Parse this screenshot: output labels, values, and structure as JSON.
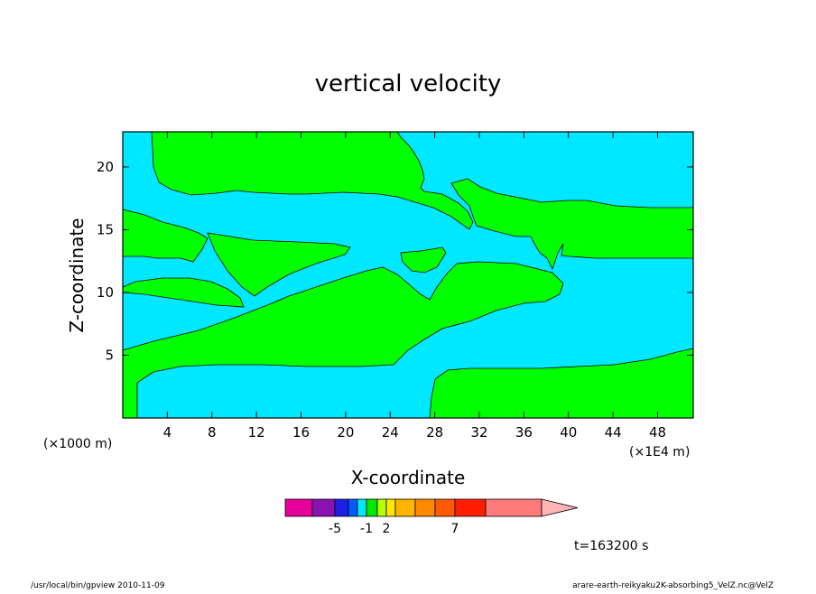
{
  "chart_data": {
    "type": "heatmap",
    "title": "vertical velocity",
    "xlabel": "X-coordinate",
    "ylabel": "Z-coordinate",
    "x_units": "(×1E4 m)",
    "y_units": "(×1000 m)",
    "x_ticks": [
      4,
      8,
      12,
      16,
      20,
      24,
      28,
      32,
      36,
      40,
      44,
      48
    ],
    "y_ticks": [
      5,
      10,
      15,
      20
    ],
    "xlim": [
      0,
      51.2
    ],
    "ylim": [
      0,
      22.8
    ],
    "time_label": "t=163200 s",
    "colorbar": {
      "tick_labels": [
        "-5",
        "-1",
        "2",
        "7"
      ],
      "tick_values": [
        -5,
        -1,
        2,
        7
      ],
      "colors": [
        "#e8009a",
        "#8a12b0",
        "#1e1ee6",
        "#005bff",
        "#00e8ff",
        "#00e800",
        "#b4ff00",
        "#ffe800",
        "#ffb400",
        "#ff8a00",
        "#ff5a00",
        "#ff1e00",
        "#ff7a7a"
      ],
      "extension_color": "#ffb4b4"
    },
    "field_colors": {
      "negative": "#00e8ff",
      "positive": "#00ff00"
    }
  },
  "footer": {
    "left": "/usr/local/bin/gpview   2010-11-09",
    "right": "arare-earth-reikyaku2K-absorbing5_VelZ.nc@VelZ"
  }
}
